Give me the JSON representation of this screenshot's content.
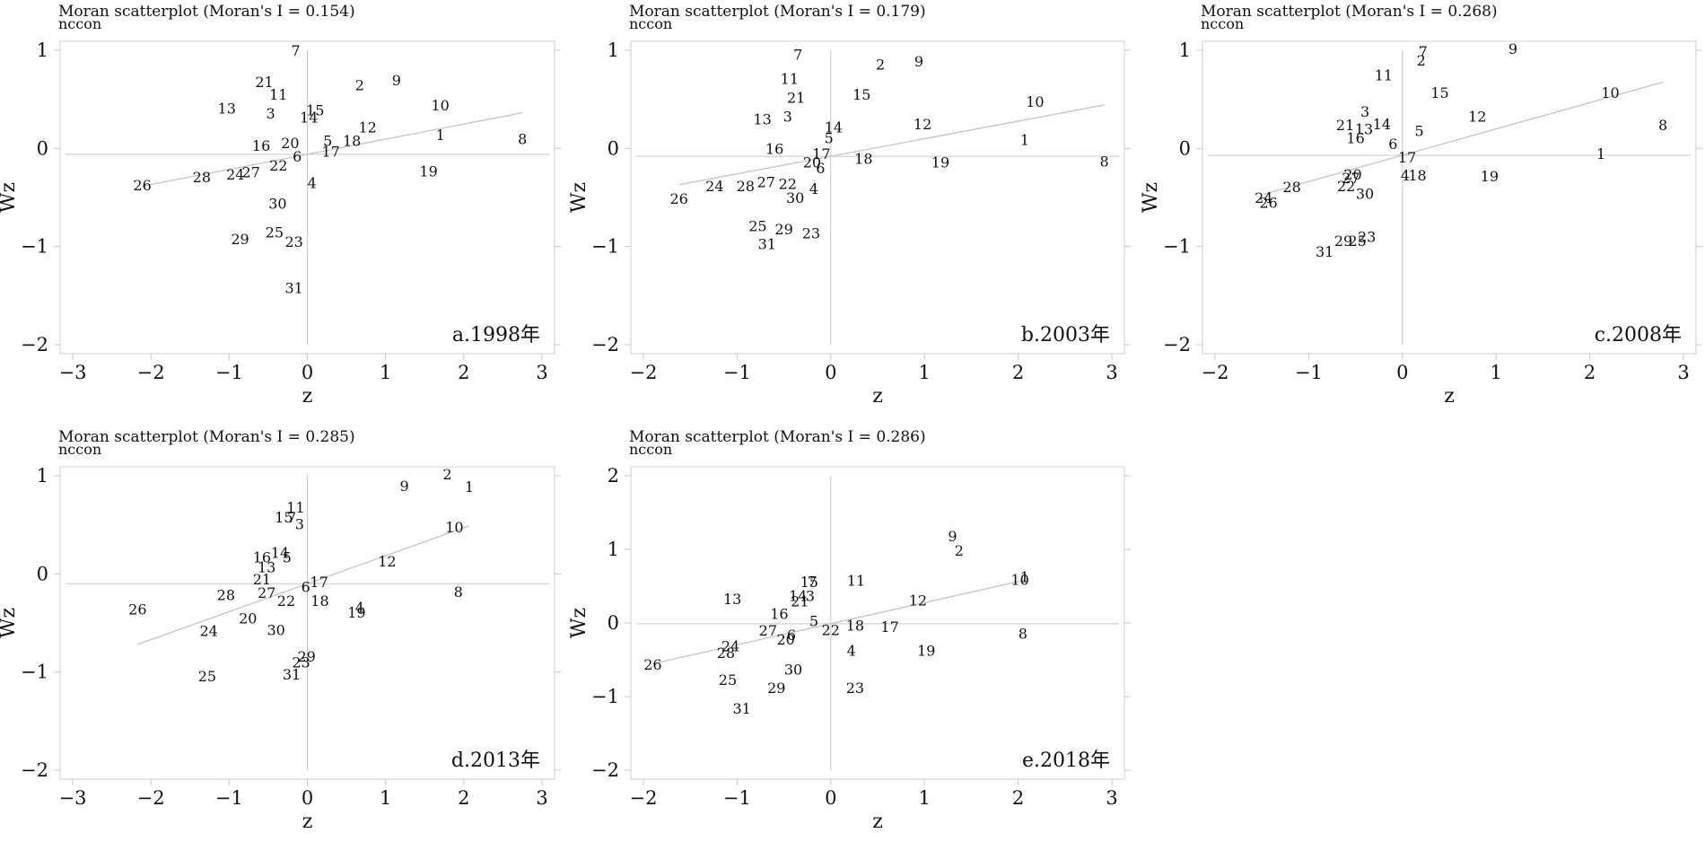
{
  "chart_data": [
    {
      "type": "scatter",
      "title": "Moran scatterplot (Moran's I = 0.154)",
      "variable": "nccon",
      "caption": "a.1998年",
      "xlabel": "z",
      "ylabel": "Wz",
      "xlim": [
        -3,
        3
      ],
      "ylim": [
        -2,
        1
      ],
      "xticks": [
        -3,
        -2,
        -1,
        0,
        1,
        2,
        3
      ],
      "yticks": [
        -2,
        -1,
        0,
        1
      ],
      "xticklabels": [
        "−3",
        "−2",
        "−1",
        "0",
        "1",
        "2",
        "3"
      ],
      "yticklabels": [
        "−2",
        "−1",
        "0",
        "1"
      ],
      "grid": false,
      "fit_line": {
        "slope": 0.154,
        "intercept": -0.06
      },
      "points": [
        {
          "label": "7",
          "x": -0.15,
          "y": 1.0
        },
        {
          "label": "2",
          "x": 0.67,
          "y": 0.65
        },
        {
          "label": "9",
          "x": 1.14,
          "y": 0.7
        },
        {
          "label": "21",
          "x": -0.55,
          "y": 0.68
        },
        {
          "label": "11",
          "x": -0.37,
          "y": 0.55
        },
        {
          "label": "13",
          "x": -1.03,
          "y": 0.41
        },
        {
          "label": "3",
          "x": -0.47,
          "y": 0.36
        },
        {
          "label": "15",
          "x": 0.1,
          "y": 0.39
        },
        {
          "label": "14",
          "x": 0.02,
          "y": 0.32
        },
        {
          "label": "10",
          "x": 1.7,
          "y": 0.44
        },
        {
          "label": "12",
          "x": 0.77,
          "y": 0.22
        },
        {
          "label": "1",
          "x": 1.7,
          "y": 0.14
        },
        {
          "label": "8",
          "x": 2.75,
          "y": 0.1
        },
        {
          "label": "5",
          "x": 0.26,
          "y": 0.08
        },
        {
          "label": "18",
          "x": 0.57,
          "y": 0.08
        },
        {
          "label": "16",
          "x": -0.59,
          "y": 0.03
        },
        {
          "label": "20",
          "x": -0.22,
          "y": 0.06
        },
        {
          "label": "17",
          "x": 0.3,
          "y": -0.03
        },
        {
          "label": "6",
          "x": -0.13,
          "y": -0.08
        },
        {
          "label": "22",
          "x": -0.37,
          "y": -0.17
        },
        {
          "label": "24",
          "x": -0.92,
          "y": -0.26
        },
        {
          "label": "27",
          "x": -0.72,
          "y": -0.24
        },
        {
          "label": "28",
          "x": -1.35,
          "y": -0.29
        },
        {
          "label": "26",
          "x": -2.11,
          "y": -0.37
        },
        {
          "label": "4",
          "x": 0.06,
          "y": -0.35
        },
        {
          "label": "19",
          "x": 1.55,
          "y": -0.23
        },
        {
          "label": "30",
          "x": -0.38,
          "y": -0.56
        },
        {
          "label": "25",
          "x": -0.42,
          "y": -0.85
        },
        {
          "label": "29",
          "x": -0.86,
          "y": -0.92
        },
        {
          "label": "23",
          "x": -0.17,
          "y": -0.95
        },
        {
          "label": "31",
          "x": -0.17,
          "y": -1.42
        }
      ]
    },
    {
      "type": "scatter",
      "title": "Moran scatterplot (Moran's I = 0.179)",
      "variable": "nccon",
      "caption": "b.2003年",
      "xlabel": "z",
      "ylabel": "Wz",
      "xlim": [
        -2,
        3
      ],
      "ylim": [
        -2,
        1
      ],
      "xticks": [
        -2,
        -1,
        0,
        1,
        2,
        3
      ],
      "yticks": [
        -2,
        -1,
        0,
        1
      ],
      "xticklabels": [
        "−2",
        "−1",
        "0",
        "1",
        "2",
        "3"
      ],
      "yticklabels": [
        "−2",
        "−1",
        "0",
        "1"
      ],
      "grid": false,
      "fit_line": {
        "slope": 0.179,
        "intercept": -0.08
      },
      "points": [
        {
          "label": "7",
          "x": -0.35,
          "y": 0.96
        },
        {
          "label": "2",
          "x": 0.53,
          "y": 0.86
        },
        {
          "label": "9",
          "x": 0.94,
          "y": 0.89
        },
        {
          "label": "11",
          "x": -0.44,
          "y": 0.71
        },
        {
          "label": "21",
          "x": -0.37,
          "y": 0.52
        },
        {
          "label": "15",
          "x": 0.33,
          "y": 0.55
        },
        {
          "label": "10",
          "x": 2.18,
          "y": 0.48
        },
        {
          "label": "13",
          "x": -0.73,
          "y": 0.3
        },
        {
          "label": "3",
          "x": -0.46,
          "y": 0.33
        },
        {
          "label": "14",
          "x": 0.03,
          "y": 0.22
        },
        {
          "label": "12",
          "x": 0.98,
          "y": 0.25
        },
        {
          "label": "5",
          "x": -0.02,
          "y": 0.11
        },
        {
          "label": "1",
          "x": 2.07,
          "y": 0.09
        },
        {
          "label": "16",
          "x": -0.6,
          "y": 0.0
        },
        {
          "label": "17",
          "x": -0.1,
          "y": -0.05
        },
        {
          "label": "20",
          "x": -0.2,
          "y": -0.14
        },
        {
          "label": "6",
          "x": -0.11,
          "y": -0.2
        },
        {
          "label": "18",
          "x": 0.35,
          "y": -0.1
        },
        {
          "label": "19",
          "x": 1.17,
          "y": -0.14
        },
        {
          "label": "8",
          "x": 2.92,
          "y": -0.13
        },
        {
          "label": "24",
          "x": -1.24,
          "y": -0.38
        },
        {
          "label": "28",
          "x": -0.91,
          "y": -0.38
        },
        {
          "label": "27",
          "x": -0.69,
          "y": -0.34
        },
        {
          "label": "22",
          "x": -0.46,
          "y": -0.36
        },
        {
          "label": "4",
          "x": -0.18,
          "y": -0.41
        },
        {
          "label": "30",
          "x": -0.38,
          "y": -0.5
        },
        {
          "label": "26",
          "x": -1.62,
          "y": -0.51
        },
        {
          "label": "25",
          "x": -0.78,
          "y": -0.79
        },
        {
          "label": "29",
          "x": -0.5,
          "y": -0.82
        },
        {
          "label": "23",
          "x": -0.21,
          "y": -0.86
        },
        {
          "label": "31",
          "x": -0.68,
          "y": -0.97
        }
      ]
    },
    {
      "type": "scatter",
      "title": "Moran scatterplot (Moran's I = 0.268)",
      "variable": "nccon",
      "caption": "c.2008年",
      "xlabel": "z",
      "ylabel": "Wz",
      "xlim": [
        -2,
        3
      ],
      "ylim": [
        -2,
        1
      ],
      "xticks": [
        -2,
        -1,
        0,
        1,
        2,
        3
      ],
      "yticks": [
        -2,
        -1,
        0,
        1
      ],
      "xticklabels": [
        "−2",
        "−1",
        "0",
        "1",
        "2",
        "3"
      ],
      "yticklabels": [
        "−2",
        "−1",
        "0",
        "1"
      ],
      "grid": false,
      "fit_line": {
        "slope": 0.268,
        "intercept": -0.07
      },
      "points": [
        {
          "label": "7",
          "x": 0.22,
          "y": 0.99
        },
        {
          "label": "9",
          "x": 1.18,
          "y": 1.02
        },
        {
          "label": "2",
          "x": 0.2,
          "y": 0.9
        },
        {
          "label": "11",
          "x": -0.2,
          "y": 0.75
        },
        {
          "label": "15",
          "x": 0.4,
          "y": 0.57
        },
        {
          "label": "10",
          "x": 2.22,
          "y": 0.57
        },
        {
          "label": "3",
          "x": -0.4,
          "y": 0.38
        },
        {
          "label": "12",
          "x": 0.8,
          "y": 0.33
        },
        {
          "label": "21",
          "x": -0.61,
          "y": 0.24
        },
        {
          "label": "13",
          "x": -0.41,
          "y": 0.2
        },
        {
          "label": "14",
          "x": -0.22,
          "y": 0.25
        },
        {
          "label": "8",
          "x": 2.78,
          "y": 0.24
        },
        {
          "label": "16",
          "x": -0.5,
          "y": 0.11
        },
        {
          "label": "5",
          "x": 0.18,
          "y": 0.18
        },
        {
          "label": "6",
          "x": -0.1,
          "y": 0.05
        },
        {
          "label": "17",
          "x": 0.05,
          "y": -0.09
        },
        {
          "label": "1",
          "x": 2.12,
          "y": -0.05
        },
        {
          "label": "20",
          "x": -0.53,
          "y": -0.26
        },
        {
          "label": "27",
          "x": -0.55,
          "y": -0.3
        },
        {
          "label": "22",
          "x": -0.6,
          "y": -0.38
        },
        {
          "label": "4",
          "x": 0.03,
          "y": -0.27
        },
        {
          "label": "18",
          "x": 0.16,
          "y": -0.27
        },
        {
          "label": "19",
          "x": 0.93,
          "y": -0.28
        },
        {
          "label": "30",
          "x": -0.4,
          "y": -0.46
        },
        {
          "label": "28",
          "x": -1.18,
          "y": -0.39
        },
        {
          "label": "24",
          "x": -1.48,
          "y": -0.5
        },
        {
          "label": "26",
          "x": -1.43,
          "y": -0.55
        },
        {
          "label": "29",
          "x": -0.63,
          "y": -0.94
        },
        {
          "label": "25",
          "x": -0.48,
          "y": -0.94
        },
        {
          "label": "23",
          "x": -0.38,
          "y": -0.9
        },
        {
          "label": "31",
          "x": -0.83,
          "y": -1.05
        }
      ]
    },
    {
      "type": "scatter",
      "title": "Moran scatterplot (Moran's I = 0.285)",
      "variable": "nccon",
      "caption": "d.2013年",
      "xlabel": "z",
      "ylabel": "Wz",
      "xlim": [
        -3,
        3
      ],
      "ylim": [
        -2,
        1
      ],
      "xticks": [
        -3,
        -2,
        -1,
        0,
        1,
        2,
        3
      ],
      "yticks": [
        -2,
        -1,
        0,
        1
      ],
      "xticklabels": [
        "−3",
        "−2",
        "−1",
        "0",
        "1",
        "2",
        "3"
      ],
      "yticklabels": [
        "−2",
        "−1",
        "0",
        "1"
      ],
      "grid": false,
      "fit_line": {
        "slope": 0.285,
        "intercept": -0.1
      },
      "points": [
        {
          "label": "2",
          "x": 1.79,
          "y": 1.02
        },
        {
          "label": "9",
          "x": 1.24,
          "y": 0.9
        },
        {
          "label": "1",
          "x": 2.07,
          "y": 0.89
        },
        {
          "label": "11",
          "x": -0.15,
          "y": 0.68
        },
        {
          "label": "15",
          "x": -0.3,
          "y": 0.58
        },
        {
          "label": "7",
          "x": -0.2,
          "y": 0.58
        },
        {
          "label": "3",
          "x": -0.1,
          "y": 0.51
        },
        {
          "label": "10",
          "x": 1.88,
          "y": 0.48
        },
        {
          "label": "16",
          "x": -0.58,
          "y": 0.17
        },
        {
          "label": "14",
          "x": -0.35,
          "y": 0.22
        },
        {
          "label": "5",
          "x": -0.26,
          "y": 0.17
        },
        {
          "label": "12",
          "x": 1.02,
          "y": 0.13
        },
        {
          "label": "13",
          "x": -0.52,
          "y": 0.07
        },
        {
          "label": "21",
          "x": -0.58,
          "y": -0.05
        },
        {
          "label": "17",
          "x": 0.15,
          "y": -0.08
        },
        {
          "label": "6",
          "x": -0.02,
          "y": -0.13
        },
        {
          "label": "8",
          "x": 1.93,
          "y": -0.18
        },
        {
          "label": "28",
          "x": -1.04,
          "y": -0.21
        },
        {
          "label": "27",
          "x": -0.52,
          "y": -0.19
        },
        {
          "label": "22",
          "x": -0.27,
          "y": -0.27
        },
        {
          "label": "18",
          "x": 0.16,
          "y": -0.27
        },
        {
          "label": "4",
          "x": 0.67,
          "y": -0.34
        },
        {
          "label": "19",
          "x": 0.63,
          "y": -0.39
        },
        {
          "label": "26",
          "x": -2.17,
          "y": -0.36
        },
        {
          "label": "20",
          "x": -0.76,
          "y": -0.45
        },
        {
          "label": "24",
          "x": -1.26,
          "y": -0.58
        },
        {
          "label": "30",
          "x": -0.4,
          "y": -0.57
        },
        {
          "label": "29",
          "x": -0.01,
          "y": -0.84
        },
        {
          "label": "23",
          "x": -0.08,
          "y": -0.9
        },
        {
          "label": "31",
          "x": -0.2,
          "y": -1.02
        },
        {
          "label": "25",
          "x": -1.28,
          "y": -1.04
        }
      ]
    },
    {
      "type": "scatter",
      "title": "Moran scatterplot (Moran's I = 0.286)",
      "variable": "nccon",
      "caption": "e.2018年",
      "xlabel": "z",
      "ylabel": "Wz",
      "xlim": [
        -2,
        3
      ],
      "ylim": [
        -2,
        2
      ],
      "xticks": [
        -2,
        -1,
        0,
        1,
        2,
        3
      ],
      "yticks": [
        -2,
        -1,
        0,
        1,
        2
      ],
      "xticklabels": [
        "−2",
        "−1",
        "0",
        "1",
        "2",
        "3"
      ],
      "yticklabels": [
        "−2",
        "−1",
        "0",
        "1",
        "2"
      ],
      "grid": false,
      "fit_line": {
        "slope": 0.286,
        "intercept": -0.01
      },
      "points": [
        {
          "label": "9",
          "x": 1.3,
          "y": 1.18
        },
        {
          "label": "2",
          "x": 1.37,
          "y": 0.99
        },
        {
          "label": "1",
          "x": 2.07,
          "y": 0.63
        },
        {
          "label": "10",
          "x": 2.02,
          "y": 0.59
        },
        {
          "label": "15",
          "x": -0.23,
          "y": 0.56
        },
        {
          "label": "11",
          "x": 0.27,
          "y": 0.58
        },
        {
          "label": "7",
          "x": -0.2,
          "y": 0.57
        },
        {
          "label": "14",
          "x": -0.35,
          "y": 0.37
        },
        {
          "label": "3",
          "x": -0.22,
          "y": 0.37
        },
        {
          "label": "13",
          "x": -1.05,
          "y": 0.33
        },
        {
          "label": "21",
          "x": -0.33,
          "y": 0.3
        },
        {
          "label": "12",
          "x": 0.93,
          "y": 0.31
        },
        {
          "label": "16",
          "x": -0.55,
          "y": 0.13
        },
        {
          "label": "5",
          "x": -0.18,
          "y": 0.03
        },
        {
          "label": "27",
          "x": -0.67,
          "y": -0.1
        },
        {
          "label": "6",
          "x": -0.42,
          "y": -0.16
        },
        {
          "label": "20",
          "x": -0.48,
          "y": -0.22
        },
        {
          "label": "22",
          "x": 0.0,
          "y": -0.09
        },
        {
          "label": "18",
          "x": 0.26,
          "y": -0.03
        },
        {
          "label": "17",
          "x": 0.63,
          "y": -0.05
        },
        {
          "label": "8",
          "x": 2.05,
          "y": -0.14
        },
        {
          "label": "24",
          "x": -1.07,
          "y": -0.31
        },
        {
          "label": "28",
          "x": -1.12,
          "y": -0.4
        },
        {
          "label": "4",
          "x": 0.22,
          "y": -0.37
        },
        {
          "label": "19",
          "x": 1.02,
          "y": -0.37
        },
        {
          "label": "26",
          "x": -1.9,
          "y": -0.56
        },
        {
          "label": "30",
          "x": -0.4,
          "y": -0.63
        },
        {
          "label": "25",
          "x": -1.1,
          "y": -0.77
        },
        {
          "label": "29",
          "x": -0.58,
          "y": -0.88
        },
        {
          "label": "23",
          "x": 0.26,
          "y": -0.88
        },
        {
          "label": "31",
          "x": -0.95,
          "y": -1.16
        }
      ]
    }
  ]
}
